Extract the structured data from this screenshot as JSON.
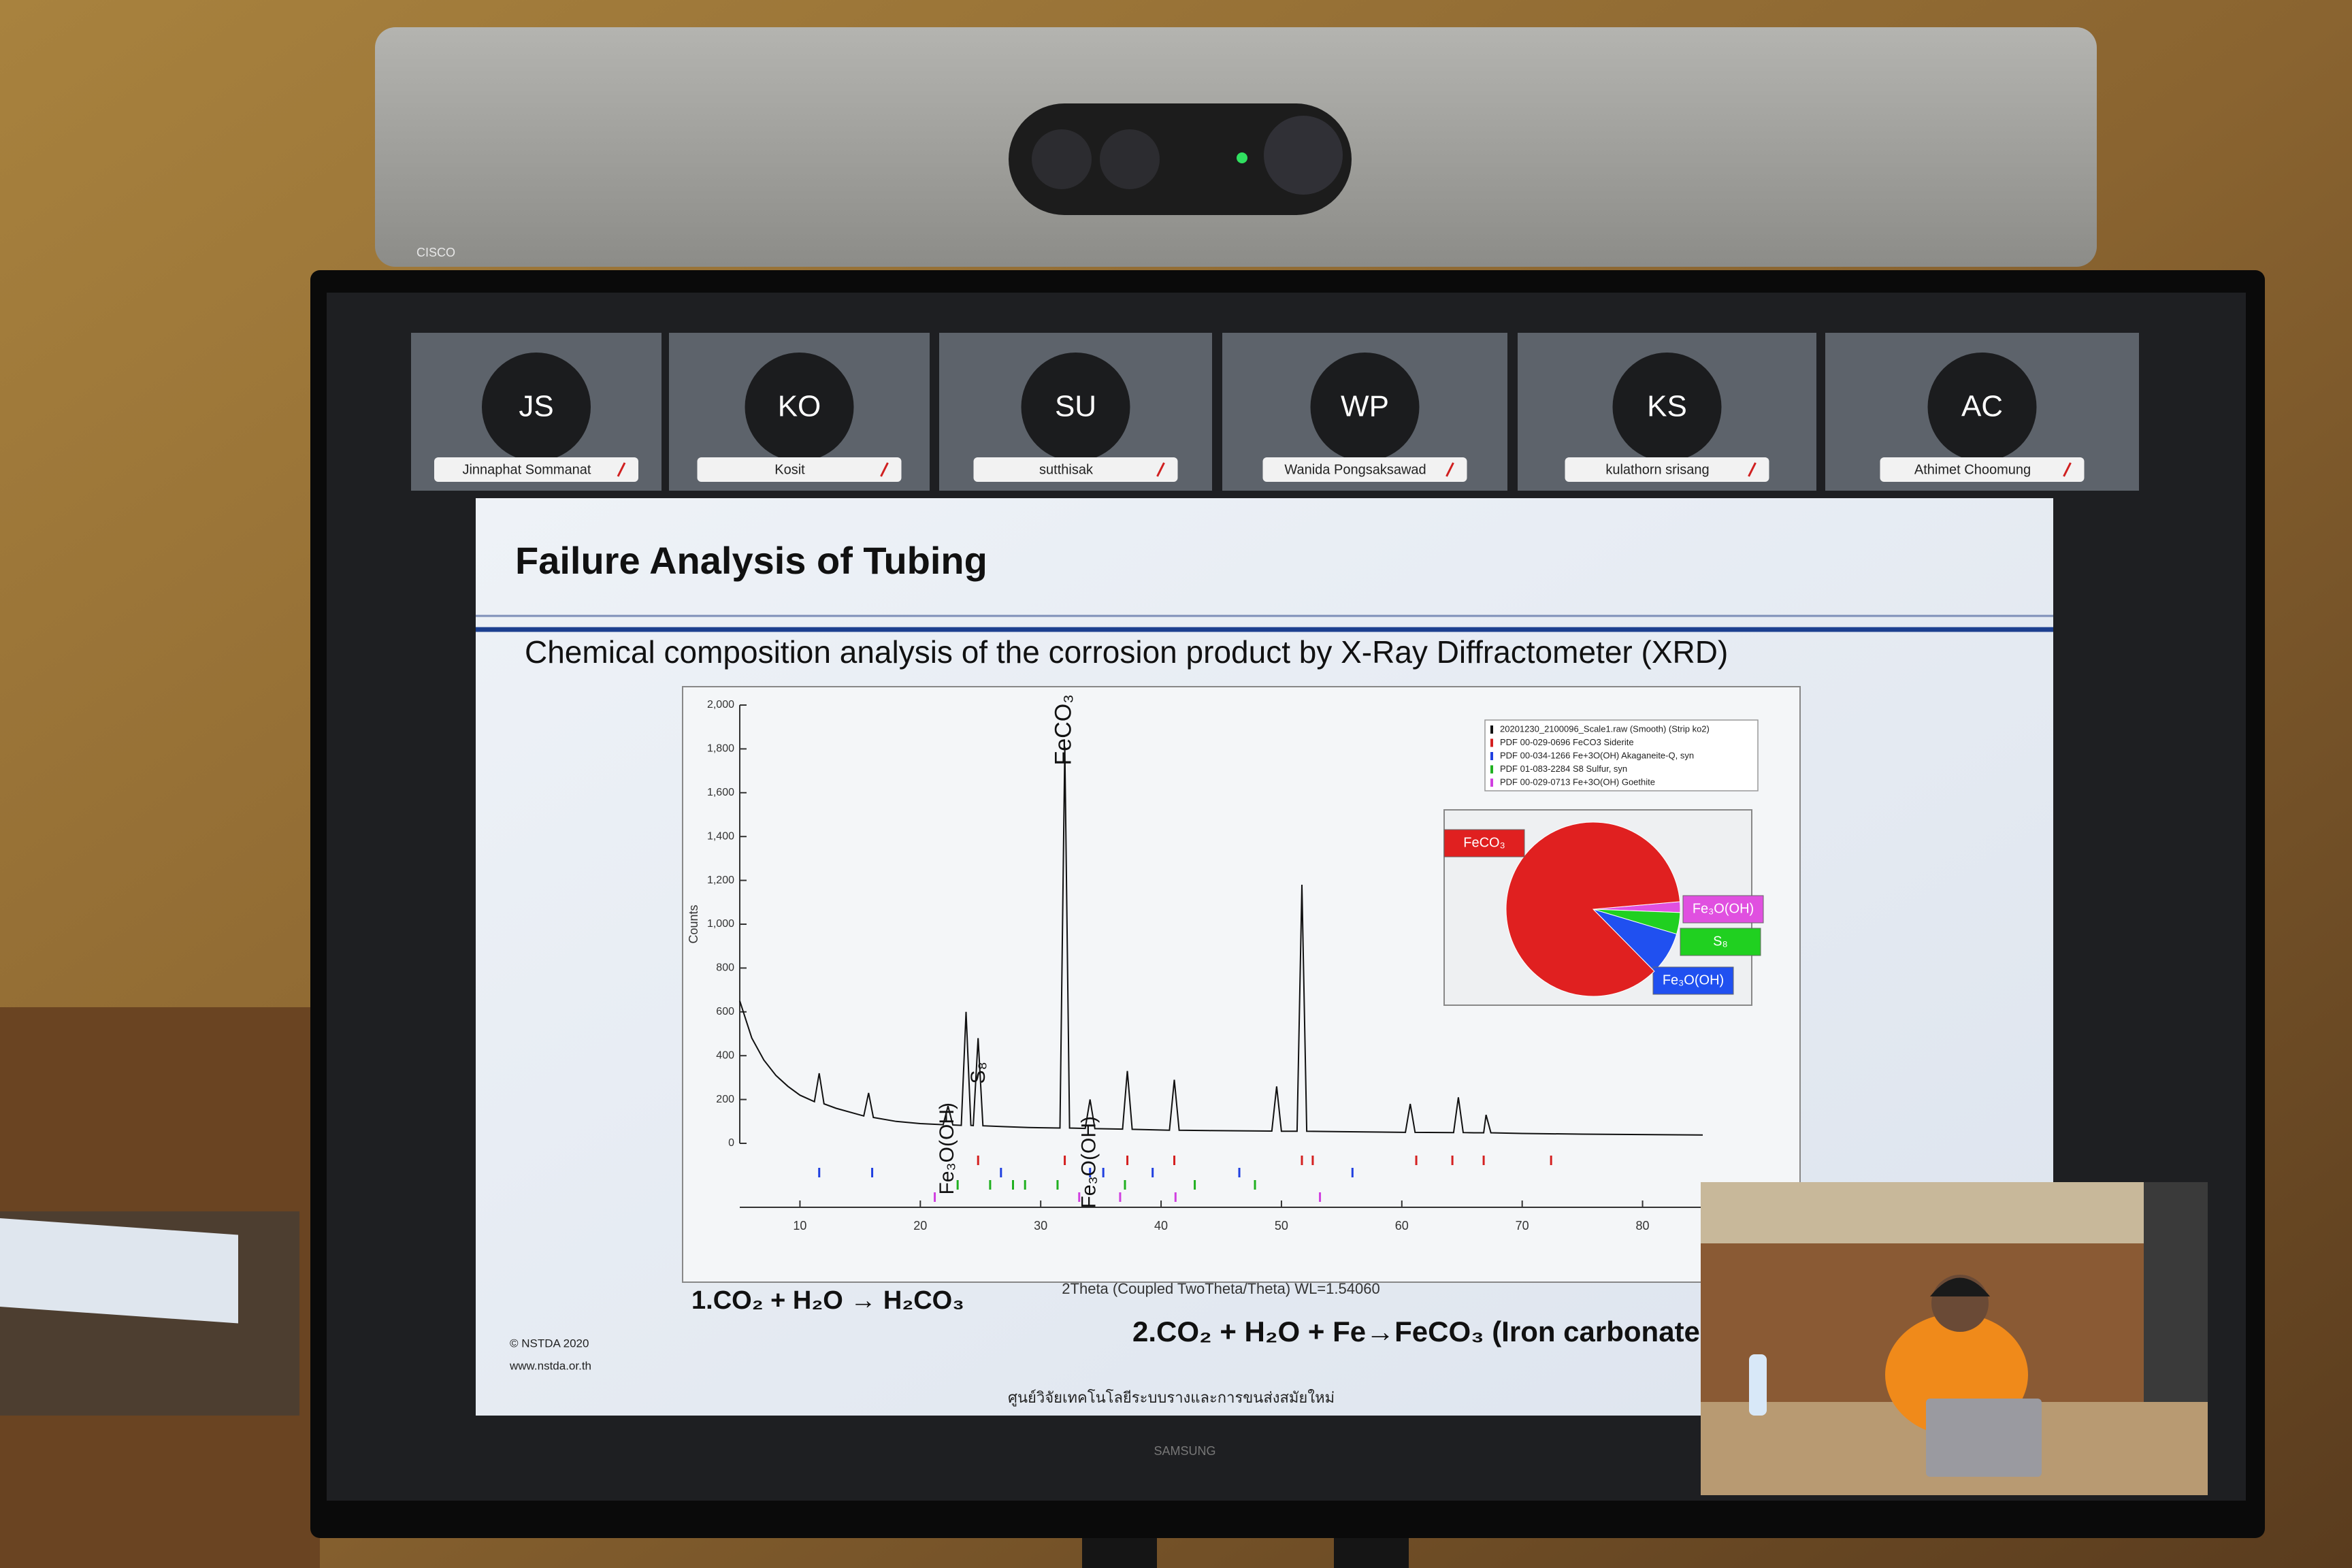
{
  "camera": {
    "brand": "CISCO"
  },
  "participants": [
    {
      "initials": "JS",
      "name": "Jinnaphat Sommanat"
    },
    {
      "initials": "KO",
      "name": "Kosit"
    },
    {
      "initials": "SU",
      "name": "sutthisak"
    },
    {
      "initials": "WP",
      "name": "Wanida Pongsaksawad"
    },
    {
      "initials": "KS",
      "name": "kulathorn srisang"
    },
    {
      "initials": "AC",
      "name": "Athimet Choomung"
    }
  ],
  "slide": {
    "title": "Failure Analysis of Tubing",
    "subtitle": "Chemical composition analysis of the corrosion product by X-Ray Diffractometer (XRD)",
    "equation_1": "1.CO₂ + H₂O → H₂CO₃",
    "equation_2": "2.CO₂ + H₂O + Fe→FeCO₃ (Iron carbonate",
    "copyright": "© NSTDA 2020",
    "website": "www.nstda.or.th",
    "caption": "ศูนย์วิจัยเทคโนโลยีระบบรางและการขนส่งสมัยใหม่"
  },
  "monitor": {
    "brand": "SAMSUNG"
  },
  "chart_data": [
    {
      "type": "line",
      "x_label": "2Theta (Coupled TwoTheta/Theta) WL=1.54060",
      "y_label": "Counts",
      "xlim": [
        5,
        85
      ],
      "ylim": [
        0,
        2000
      ],
      "xticks": [
        10,
        20,
        30,
        40,
        50,
        60,
        70,
        80
      ],
      "yticks": [
        0,
        200,
        400,
        600,
        800,
        {
          "value": 1000,
          "label": "1,000"
        },
        {
          "value": 1200,
          "label": "1,200"
        },
        {
          "value": 1400,
          "label": "1,400"
        },
        {
          "value": 1600,
          "label": "1,600"
        },
        {
          "value": 1800,
          "label": "1,800"
        },
        {
          "value": 2000,
          "label": "2,000"
        }
      ],
      "x": [
        5,
        6,
        7,
        8,
        9,
        10,
        11.2,
        11.6,
        12.0,
        13,
        15.3,
        15.7,
        16.1,
        18,
        20,
        21.9,
        22.3,
        22.7,
        23.4,
        23.8,
        24.2,
        24.4,
        24.8,
        25.2,
        27,
        29,
        31.6,
        32.0,
        32.4,
        33.7,
        34.1,
        34.5,
        36.8,
        37.2,
        37.6,
        40.7,
        41.1,
        41.5,
        44,
        49.2,
        49.6,
        50.0,
        51.3,
        51.7,
        52.1,
        55,
        60.3,
        60.7,
        61.1,
        64.3,
        64.7,
        65.1,
        66,
        66.8,
        67,
        67.4,
        70,
        75,
        80,
        85
      ],
      "series": [
        {
          "name": "20201230_2100096_Scale1.raw (Smooth) (Strip ko2)",
          "color": "#111111",
          "values": [
            650,
            480,
            380,
            310,
            260,
            220,
            190,
            320,
            180,
            160,
            125,
            230,
            118,
            100,
            90,
            85,
            170,
            84,
            82,
            600,
            82,
            81,
            480,
            80,
            76,
            72,
            70,
            1810,
            70,
            68,
            200,
            67,
            65,
            330,
            64,
            60,
            290,
            60,
            58,
            56,
            260,
            55,
            55,
            1180,
            55,
            53,
            50,
            180,
            50,
            49,
            210,
            49,
            48,
            48,
            130,
            48,
            45,
            42,
            40,
            38
          ]
        }
      ],
      "references": [
        {
          "name": "PDF 00-029-0696 FeCO3 Siderite",
          "color": "#d42020",
          "positions": [
            24.8,
            32.0,
            37.2,
            41.1,
            51.7,
            52.6,
            61.2,
            64.2,
            66.8,
            72.4
          ]
        },
        {
          "name": "PDF 00-034-1266 Fe+3O(OH) Akaganeite-Q, syn",
          "color": "#2040e0",
          "positions": [
            11.6,
            16.0,
            26.7,
            34.1,
            35.2,
            39.3,
            46.5,
            55.9
          ]
        },
        {
          "name": "PDF 01-083-2284 S8 Sulfur, syn",
          "color": "#20b020",
          "positions": [
            23.1,
            25.8,
            27.7,
            28.7,
            31.4,
            37.0,
            42.8,
            47.8
          ]
        },
        {
          "name": "PDF 00-029-0713 Fe+3O(OH) Goethite",
          "color": "#d040e0",
          "positions": [
            21.2,
            33.2,
            36.6,
            41.2,
            53.2
          ]
        }
      ],
      "annotations": [
        {
          "text": "FeCO₃",
          "x": 32.0
        },
        {
          "text": "Fe₃O(OH)",
          "x": 22.3
        },
        {
          "text": "S₈",
          "x": 24.9
        },
        {
          "text": "Fe₃O(OH)",
          "x": 34.1
        }
      ]
    },
    {
      "type": "pie",
      "categories": [
        "Fe₃O(OH)",
        "S₈",
        "Fe₃O(OH)",
        "FeCO₃"
      ],
      "values": [
        2,
        4,
        8,
        86
      ],
      "colors": [
        "#e050e0",
        "#20d020",
        "#2050f0",
        "#e02020"
      ]
    }
  ]
}
